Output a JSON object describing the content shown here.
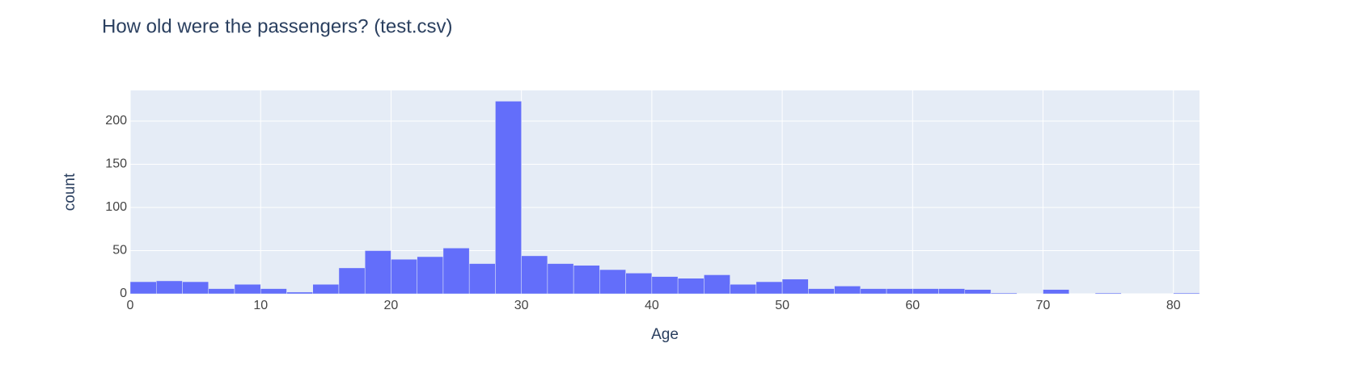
{
  "chart_data": {
    "type": "histogram",
    "title": "How old were the passengers? (test.csv)",
    "xlabel": "Age",
    "ylabel": "count",
    "color": "#636efa",
    "bins": [
      0,
      2,
      4,
      6,
      8,
      10,
      12,
      14,
      16,
      18,
      20,
      22,
      24,
      26,
      28,
      30,
      32,
      34,
      36,
      38,
      40,
      42,
      44,
      46,
      48,
      50,
      52,
      54,
      56,
      58,
      60,
      62,
      64,
      66,
      68,
      70,
      72,
      74,
      76,
      78,
      80,
      82
    ],
    "values": [
      14,
      15,
      14,
      6,
      11,
      6,
      2,
      11,
      30,
      50,
      40,
      43,
      53,
      35,
      223,
      44,
      35,
      33,
      28,
      24,
      20,
      18,
      22,
      11,
      14,
      17,
      6,
      9,
      6,
      6,
      6,
      6,
      5,
      1,
      0,
      5,
      0,
      1,
      0,
      0,
      1
    ],
    "xlim": [
      0,
      82
    ],
    "xticks": [
      0,
      10,
      20,
      30,
      40,
      50,
      60,
      70,
      80
    ],
    "ylim": [
      0,
      235.5
    ],
    "yticks": [
      0,
      50,
      100,
      150,
      200
    ],
    "grid": true
  }
}
